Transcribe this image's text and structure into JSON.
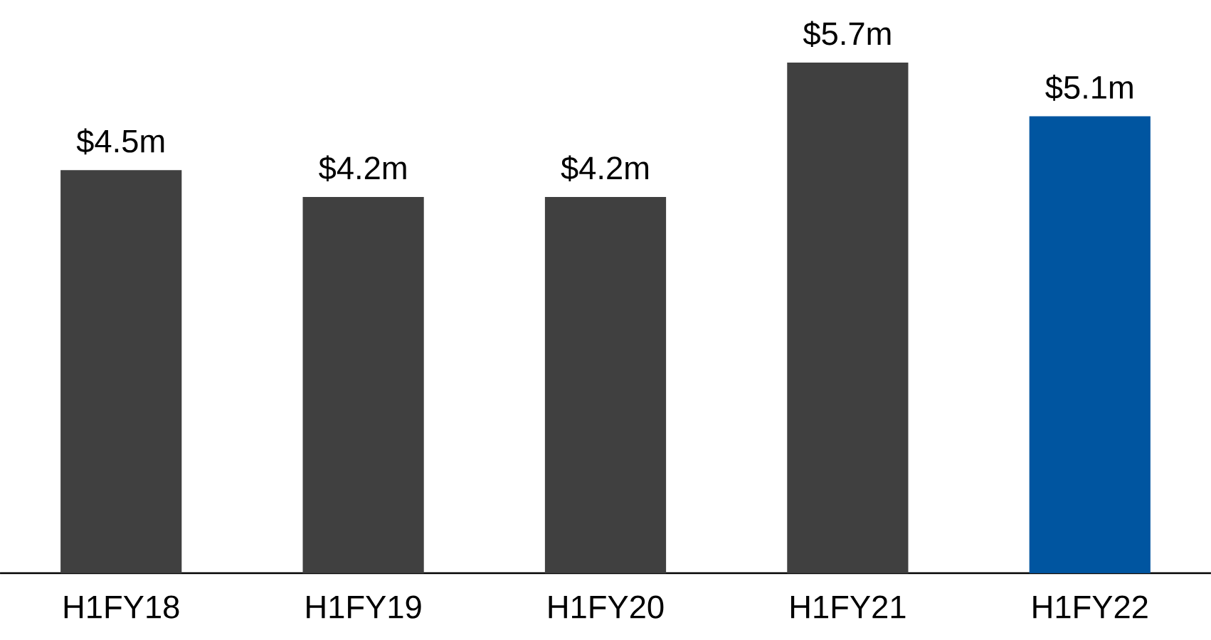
{
  "chart_data": {
    "type": "bar",
    "categories": [
      "H1FY18",
      "H1FY19",
      "H1FY20",
      "H1FY21",
      "H1FY22"
    ],
    "values": [
      4.5,
      4.2,
      4.2,
      5.7,
      5.1
    ],
    "colors": [
      "#404040",
      "#404040",
      "#404040",
      "#404040",
      "#0055a0"
    ],
    "value_labels": [
      "$4.5m",
      "$4.2m",
      "$4.2m",
      "$5.7m",
      "$5.1m"
    ]
  }
}
